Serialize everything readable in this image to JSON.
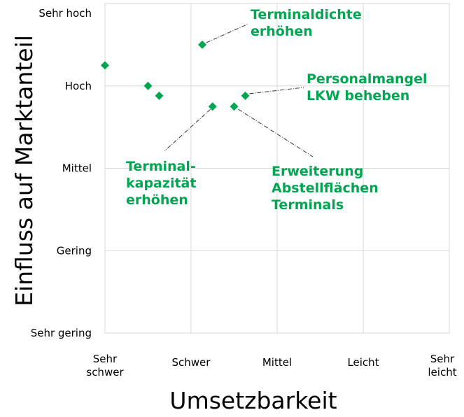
{
  "chart_data": {
    "type": "scatter",
    "title": "",
    "xlabel": "Umsetzbarkeit",
    "ylabel": "Einfluss auf Marktanteil",
    "x_ticks": [
      [
        "Sehr",
        "schwer"
      ],
      [
        "Schwer"
      ],
      [
        "Mittel"
      ],
      [
        "Leicht"
      ],
      [
        "Sehr",
        "leicht"
      ]
    ],
    "y_ticks": [
      "Sehr gering",
      "Gering",
      "Mittel",
      "Hoch",
      "Sehr hoch"
    ],
    "xlim": [
      1,
      5
    ],
    "ylim": [
      1,
      5
    ],
    "grid": true,
    "marker_color": "#00a651",
    "annotation_color": "#00a651",
    "points": [
      {
        "x": 1.0,
        "y": 4.25
      },
      {
        "x": 1.5,
        "y": 4.0
      },
      {
        "x": 1.63,
        "y": 3.88
      },
      {
        "x": 2.13,
        "y": 4.5
      },
      {
        "x": 2.25,
        "y": 3.75
      },
      {
        "x": 2.5,
        "y": 3.75
      },
      {
        "x": 2.63,
        "y": 3.88
      }
    ],
    "annotations": [
      {
        "name": "terminaldichte",
        "lines": [
          "Terminaldichte",
          "erhöhen"
        ],
        "point": 3
      },
      {
        "name": "personalmangel",
        "lines": [
          "Personalmangel",
          "LKW beheben"
        ],
        "point": 6
      },
      {
        "name": "terminalkapazitaet",
        "lines": [
          "Terminal-",
          "kapazität",
          "erhöhen"
        ],
        "point": 4
      },
      {
        "name": "abstellflaechen",
        "lines": [
          "Erweiterung",
          "Abstellflächen",
          "Terminals"
        ],
        "point": 5
      }
    ]
  }
}
